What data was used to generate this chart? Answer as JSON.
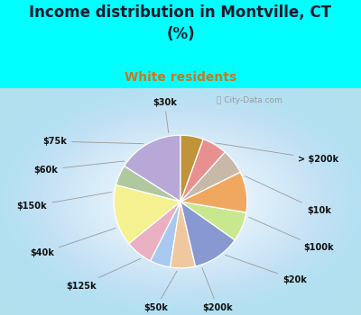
{
  "title": "Income distribution in Montville, CT\n(%)",
  "subtitle": "White residents",
  "title_color": "#1a1a2e",
  "subtitle_color": "#c87820",
  "bg_color": "#00ffff",
  "labels": [
    "> $200k",
    "$10k",
    "$100k",
    "$20k",
    "$200k",
    "$50k",
    "$125k",
    "$40k",
    "$150k",
    "$60k",
    "$75k",
    "$30k"
  ],
  "values": [
    14.5,
    4.5,
    13.5,
    6.0,
    4.5,
    5.5,
    10.5,
    6.5,
    9.0,
    5.5,
    5.5,
    5.0
  ],
  "colors": [
    "#b8a8d8",
    "#b0c8a0",
    "#f5f090",
    "#e8b0c0",
    "#a8c8f0",
    "#f0c8a0",
    "#8898d0",
    "#c8e890",
    "#f0a860",
    "#c8b8a8",
    "#e89090",
    "#c0943a"
  ],
  "startangle": 90,
  "label_positions": {
    "> $200k": [
      1.32,
      0.48,
      "left"
    ],
    "$10k": [
      1.42,
      -0.1,
      "left"
    ],
    "$100k": [
      1.38,
      -0.52,
      "left"
    ],
    "$20k": [
      1.15,
      -0.88,
      "left"
    ],
    "$200k": [
      0.42,
      -1.2,
      "center"
    ],
    "$50k": [
      -0.28,
      -1.2,
      "center"
    ],
    "$125k": [
      -0.95,
      -0.95,
      "right"
    ],
    "$40k": [
      -1.42,
      -0.58,
      "right"
    ],
    "$150k": [
      -1.5,
      -0.05,
      "right"
    ],
    "$60k": [
      -1.38,
      0.36,
      "right"
    ],
    "$75k": [
      -1.28,
      0.68,
      "right"
    ],
    "$30k": [
      -0.18,
      1.12,
      "center"
    ]
  }
}
